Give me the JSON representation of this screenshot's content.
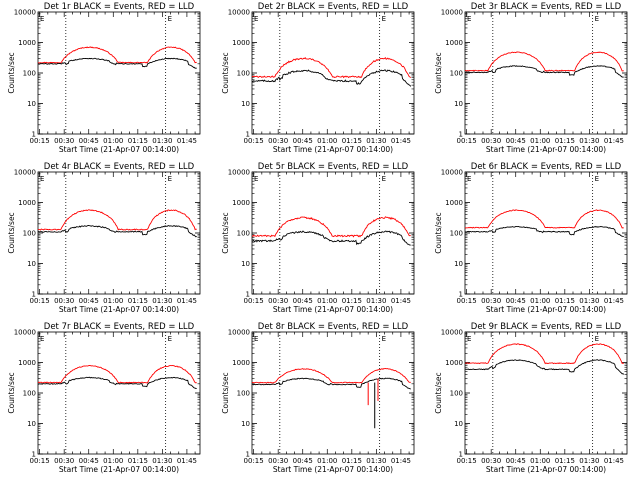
{
  "chart_data": {
    "type": "line",
    "layout": "3x3 grid of log-scale time series panels",
    "title_suffix": " BLACK = Events, RED = LLD",
    "xlabel": "Start Time (21-Apr-07 00:14:00)",
    "ylabel": "Counts/sec",
    "x_tick_labels": [
      "00:15",
      "00:30",
      "00:45",
      "01:00",
      "01:15",
      "01:30",
      "01:45"
    ],
    "x_tick_minutes": [
      15,
      30,
      45,
      60,
      75,
      90,
      105
    ],
    "x_range_minutes": [
      14,
      113
    ],
    "y_tick_labels": [
      "1",
      "10",
      "100",
      "1000",
      "10000"
    ],
    "ylim": [
      1,
      10000
    ],
    "y_scale": "log",
    "vertical_markers_minutes": [
      31,
      92
    ],
    "marker_label": "E",
    "series_colors": {
      "events": "#000000",
      "lld": "#ff0000"
    },
    "series_names": [
      "Events",
      "LLD"
    ],
    "panels": [
      {
        "id": "p1",
        "detector": "Det 1r",
        "events_base": 200,
        "events_peak": 300,
        "lld_base": 220,
        "lld_peak": 700,
        "noise": 0.03
      },
      {
        "id": "p2",
        "detector": "Det 2r",
        "events_base": 55,
        "events_peak": 120,
        "lld_base": 75,
        "lld_peak": 300,
        "noise": 0.06
      },
      {
        "id": "p3",
        "detector": "Det 3r",
        "events_base": 105,
        "events_peak": 170,
        "lld_base": 120,
        "lld_peak": 480,
        "noise": 0.03
      },
      {
        "id": "p4",
        "detector": "Det 4r",
        "events_base": 110,
        "events_peak": 170,
        "lld_base": 130,
        "lld_peak": 560,
        "noise": 0.04
      },
      {
        "id": "p5",
        "detector": "Det 5r",
        "events_base": 55,
        "events_peak": 110,
        "lld_base": 80,
        "lld_peak": 320,
        "noise": 0.06
      },
      {
        "id": "p6",
        "detector": "Det 6r",
        "events_base": 110,
        "events_peak": 160,
        "lld_base": 150,
        "lld_peak": 560,
        "noise": 0.03
      },
      {
        "id": "p7",
        "detector": "Det 7r",
        "events_base": 200,
        "events_peak": 320,
        "lld_base": 220,
        "lld_peak": 780,
        "noise": 0.03
      },
      {
        "id": "p8",
        "detector": "Det 8r",
        "events_base": 190,
        "events_peak": 300,
        "lld_base": 220,
        "lld_peak": 620,
        "noise": 0.03
      },
      {
        "id": "p9",
        "detector": "Det 9r",
        "events_base": 600,
        "events_peak": 1200,
        "lld_base": 950,
        "lld_peak": 4000,
        "noise": 0.03
      }
    ]
  }
}
